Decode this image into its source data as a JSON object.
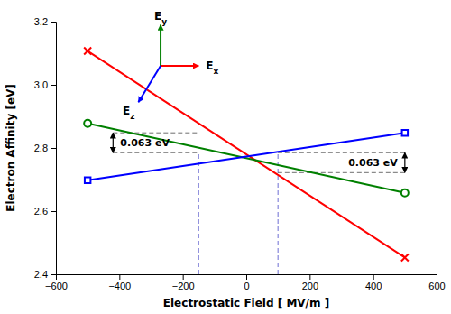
{
  "chart_data": {
    "type": "line",
    "xlabel": "Electrostatic Field [ MV/m ]",
    "ylabel": "Electron Affinity [eV]",
    "xlim": [
      -600,
      600
    ],
    "ylim": [
      2.4,
      3.2
    ],
    "xticks": [
      {
        "value": -600,
        "label": "−600"
      },
      {
        "value": -400,
        "label": "−400"
      },
      {
        "value": -200,
        "label": "−200"
      },
      0,
      200,
      400,
      600
    ],
    "yticks": [
      2.4,
      2.6,
      2.8,
      {
        "value": 3.0,
        "label": "3.0"
      },
      3.2
    ],
    "grid": false,
    "series": [
      {
        "color": "red",
        "marker": "x",
        "x": [
          -500,
          500
        ],
        "values": [
          3.107,
          2.453
        ]
      },
      {
        "color": "green",
        "marker": "circle",
        "x": [
          -500,
          500
        ],
        "values": [
          2.878,
          2.658
        ]
      },
      {
        "color": "blue",
        "marker": "square",
        "x": [
          -500,
          500
        ],
        "values": [
          2.698,
          2.848
        ]
      }
    ],
    "x_lines": [
      -150,
      100
    ],
    "x_lines_top": 2.785,
    "annotations": [
      {
        "text": "0.063 eV",
        "x": -420,
        "y_top": 2.848,
        "y_bottom": 2.785,
        "x_to": -150
      },
      {
        "text": "0.063 eV",
        "x": 500,
        "y_top": 2.785,
        "y_bottom": 2.722,
        "x_to": 100
      }
    ],
    "field_arrows": {
      "origin": [
        -270,
        3.06
      ],
      "arrows": [
        {
          "label": "Ex",
          "color": "red",
          "dx": 120,
          "dy": 0.0
        },
        {
          "label": "Ey",
          "color": "green",
          "dx": 0,
          "dy": 0.13
        },
        {
          "label": "Ez",
          "color": "blue",
          "dx": -70,
          "dy": -0.115
        }
      ]
    }
  }
}
